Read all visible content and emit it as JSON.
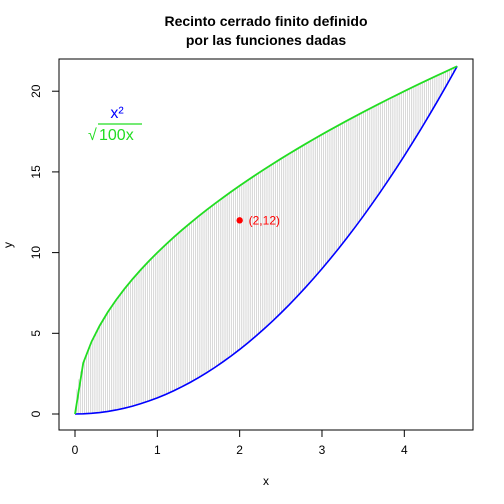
{
  "chart_data": {
    "type": "area",
    "title_line1": "Recinto cerrado finito definido",
    "title_line2": "por las funciones dadas",
    "xlabel": "x",
    "ylabel": "y",
    "xlim": [
      0,
      4.64
    ],
    "ylim": [
      0,
      21.5
    ],
    "x_ticks": [
      0,
      1,
      2,
      3,
      4
    ],
    "y_ticks": [
      0,
      5,
      10,
      15,
      20
    ],
    "x_tick_labels": [
      "0",
      "1",
      "2",
      "3",
      "4"
    ],
    "y_tick_labels": [
      "0",
      "5",
      "10",
      "15",
      "20"
    ],
    "series": [
      {
        "name": "x²",
        "formula": "x^2",
        "color": "#0000ff"
      },
      {
        "name": "√100x",
        "formula": "sqrt(100x)",
        "color": "#22dd22"
      }
    ],
    "legend": {
      "placement": "top-left",
      "entry1": "x²",
      "entry2_radical": "√",
      "entry2_body": "100x"
    },
    "point": {
      "x": 2,
      "y": 12,
      "label": "(2,12)",
      "color": "#ff0000"
    },
    "fill_color": "#c0c0c0",
    "grid": false
  }
}
